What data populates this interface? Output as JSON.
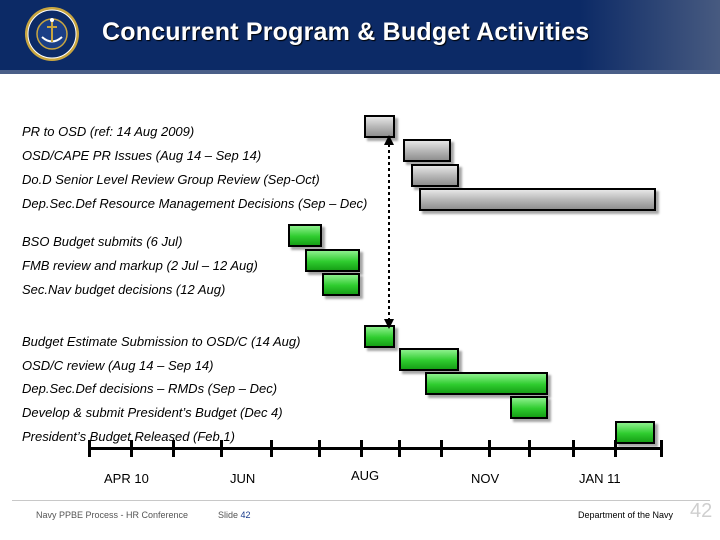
{
  "header": {
    "title": "Concurrent Program & Budget Activities"
  },
  "tasks": [
    {
      "label": "PR to OSD (ref: 14 Aug 2009)",
      "color": "grey"
    },
    {
      "label": "OSD/CAPE PR Issues (Aug 14 – Sep 14)",
      "color": "grey"
    },
    {
      "label": "Do.D Senior Level Review Group Review (Sep-Oct)",
      "color": "grey"
    },
    {
      "label": "Dep.Sec.Def Resource Management Decisions (Sep – Dec)",
      "color": "grey"
    },
    {
      "label": "BSO Budget submits (6 Jul)",
      "color": "green"
    },
    {
      "label": "FMB review and markup (2 Jul – 12 Aug)",
      "color": "green"
    },
    {
      "label": "Sec.Nav budget decisions (12 Aug)",
      "color": "green"
    },
    {
      "label": "Budget Estimate Submission to OSD/C (14 Aug)",
      "color": "green"
    },
    {
      "label": "OSD/C review (Aug 14 – Sep 14)",
      "color": "green"
    },
    {
      "label": "Dep.Sec.Def decisions – RMDs (Sep – Dec)",
      "color": "green"
    },
    {
      "label": "Develop & submit President’s Budget (Dec 4)",
      "color": "green"
    },
    {
      "label": "President’s Budget Released (Feb 1)",
      "color": "green"
    }
  ],
  "timeline": {
    "months": [
      "APR 10",
      "JUN",
      "AUG",
      "NOV",
      "JAN 11"
    ]
  },
  "footer": {
    "left_text": "Navy PPBE Process -  HR Conference",
    "slide_label": "Slide",
    "slide_number": "42",
    "right_text": "Department of the Navy",
    "page_number": "42"
  },
  "colors": {
    "header_bg": "#0c2a66",
    "bar_grey": "#b4b4b4",
    "bar_green": "#2fcc2f"
  },
  "icons": {
    "seal": "navy-seal-icon",
    "milestone": "dashed-arrow-icon"
  }
}
